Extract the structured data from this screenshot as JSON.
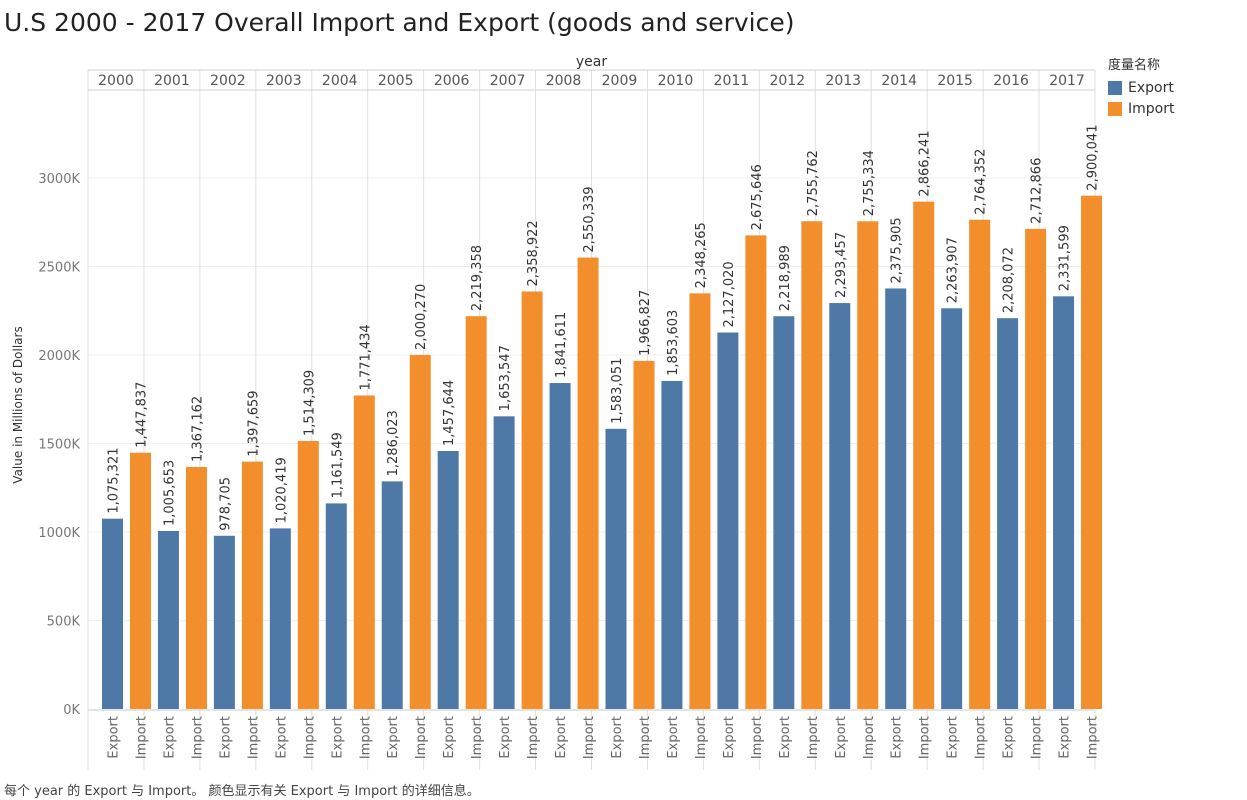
{
  "title": "U.S 2000 - 2017 Overall Import and Export (goods and service)",
  "footer": "每个 year 的 Export 与 Import。 颜色显示有关 Export 与 Import 的详细信息。",
  "legend": {
    "title": "度量名称",
    "items": [
      {
        "label": "Export",
        "color": "#4e79a7"
      },
      {
        "label": "Import",
        "color": "#f28e2b"
      }
    ]
  },
  "chart_data": {
    "type": "bar",
    "column_header_label": "year",
    "ylabel": "Value in Millions of Dollars",
    "ylim": [
      0,
      3500000
    ],
    "yticks": [
      {
        "value": 0,
        "label": "0K"
      },
      {
        "value": 500000,
        "label": "500K"
      },
      {
        "value": 1000000,
        "label": "1000K"
      },
      {
        "value": 1500000,
        "label": "1500K"
      },
      {
        "value": 2000000,
        "label": "2000K"
      },
      {
        "value": 2500000,
        "label": "2500K"
      },
      {
        "value": 3000000,
        "label": "3000K"
      }
    ],
    "categories": [
      "2000",
      "2001",
      "2002",
      "2003",
      "2004",
      "2005",
      "2006",
      "2007",
      "2008",
      "2009",
      "2010",
      "2011",
      "2012",
      "2013",
      "2014",
      "2015",
      "2016",
      "2017"
    ],
    "series": [
      {
        "name": "Export",
        "color": "#4e79a7",
        "values": [
          1075321,
          1005653,
          978705,
          1020419,
          1161549,
          1286023,
          1457644,
          1653547,
          1841611,
          1583051,
          1853603,
          2127020,
          2218989,
          2293457,
          2375905,
          2263907,
          2208072,
          2331599
        ],
        "labels": [
          "1,075,321",
          "1,005,653",
          "978,705",
          "1,020,419",
          "1,161,549",
          "1,286,023",
          "1,457,644",
          "1,653,547",
          "1,841,611",
          "1,583,051",
          "1,853,603",
          "2,127,020",
          "2,218,989",
          "2,293,457",
          "2,375,905",
          "2,263,907",
          "2,208,072",
          "2,331,599"
        ]
      },
      {
        "name": "Import",
        "color": "#f28e2b",
        "values": [
          1447837,
          1367162,
          1397659,
          1514309,
          1771434,
          2000270,
          2219358,
          2358922,
          2550339,
          1966827,
          2348265,
          2675646,
          2755762,
          2755334,
          2866241,
          2764352,
          2712866,
          2900041
        ],
        "labels": [
          "1,447,837",
          "1,367,162",
          "1,397,659",
          "1,514,309",
          "1,771,434",
          "2,000,270",
          "2,219,358",
          "2,358,922",
          "2,550,339",
          "1,966,827",
          "2,348,265",
          "2,675,646",
          "2,755,762",
          "2,755,334",
          "2,866,241",
          "2,764,352",
          "2,712,866",
          "2,900,041"
        ]
      }
    ],
    "grid": true,
    "legend_position": "top-right"
  }
}
